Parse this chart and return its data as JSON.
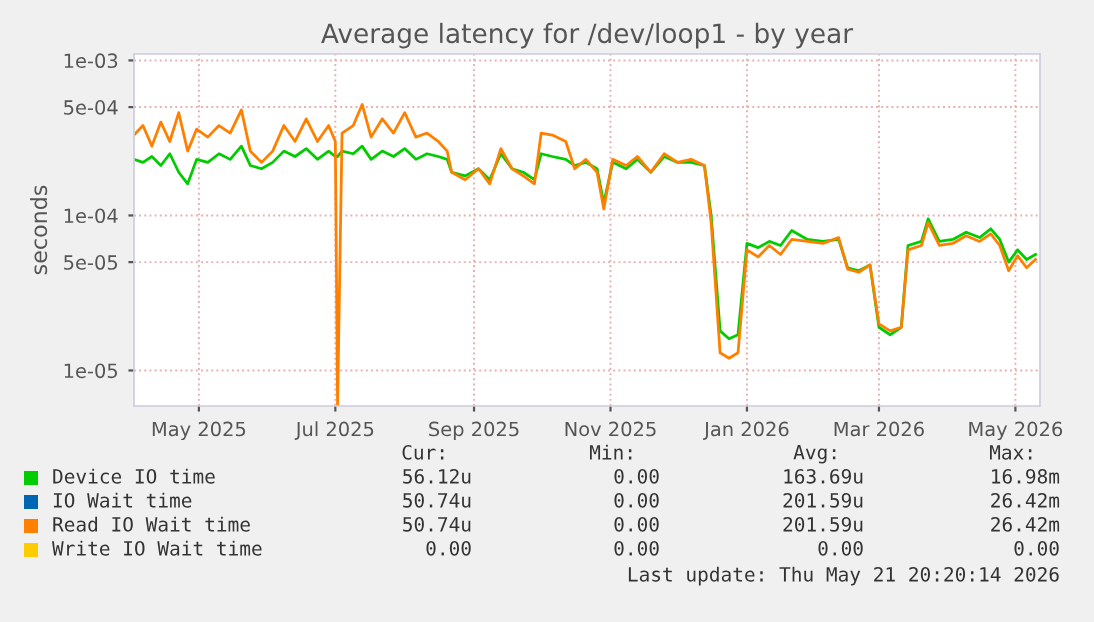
{
  "chart_data": {
    "type": "line",
    "title": "Average latency for /dev/loop1 - by year",
    "ylabel": "seconds",
    "log": "y",
    "grid": true,
    "legend": "bottom",
    "marker": "none",
    "line_style": "solid",
    "ylim": [
      5.9e-06,
      0.0011
    ],
    "yticks": [
      {
        "value": 0.001,
        "label": "1e-03"
      },
      {
        "value": 0.0005,
        "label": "5e-04"
      },
      {
        "value": 0.0001,
        "label": "1e-04"
      },
      {
        "value": 5e-05,
        "label": "5e-05"
      },
      {
        "value": 1e-05,
        "label": "1e-05"
      }
    ],
    "xlim": [
      "2025-04-02",
      "2026-05-12"
    ],
    "xticks": [
      {
        "value": "2025-05-01",
        "label": "May 2025"
      },
      {
        "value": "2025-07-01",
        "label": "Jul 2025"
      },
      {
        "value": "2025-09-01",
        "label": "Sep 2025"
      },
      {
        "value": "2025-11-01",
        "label": "Nov 2025"
      },
      {
        "value": "2026-01-01",
        "label": "Jan 2026"
      },
      {
        "value": "2026-03-01",
        "label": "Mar 2026"
      },
      {
        "value": "2026-05-01",
        "label": "May 2026"
      }
    ],
    "x": [
      "2025-04-02",
      "2025-04-06",
      "2025-04-10",
      "2025-04-14",
      "2025-04-18",
      "2025-04-22",
      "2025-04-26",
      "2025-04-30",
      "2025-05-05",
      "2025-05-10",
      "2025-05-15",
      "2025-05-20",
      "2025-05-24",
      "2025-05-29",
      "2025-06-03",
      "2025-06-08",
      "2025-06-13",
      "2025-06-18",
      "2025-06-23",
      "2025-06-28",
      "2025-07-01",
      "2025-07-02",
      "2025-07-04",
      "2025-07-09",
      "2025-07-13",
      "2025-07-17",
      "2025-07-22",
      "2025-07-27",
      "2025-08-01",
      "2025-08-06",
      "2025-08-11",
      "2025-08-16",
      "2025-08-20",
      "2025-08-22",
      "2025-08-28",
      "2025-09-03",
      "2025-09-08",
      "2025-09-13",
      "2025-09-18",
      "2025-09-23",
      "2025-09-28",
      "2025-10-01",
      "2025-10-06",
      "2025-10-12",
      "2025-10-16",
      "2025-10-21",
      "2025-10-26",
      "2025-10-29",
      "2025-11-02",
      "2025-11-08",
      "2025-11-13",
      "2025-11-19",
      "2025-11-25",
      "2025-12-01",
      "2025-12-07",
      "2025-12-13",
      "2025-12-16",
      "2025-12-20",
      "2025-12-24",
      "2025-12-28",
      "2026-01-01",
      "2026-01-06",
      "2026-01-11",
      "2026-01-16",
      "2026-01-21",
      "2026-01-28",
      "2026-02-04",
      "2026-02-11",
      "2026-02-15",
      "2026-02-20",
      "2026-02-25",
      "2026-03-01",
      "2026-03-06",
      "2026-03-11",
      "2026-03-14",
      "2026-03-20",
      "2026-03-23",
      "2026-03-28",
      "2026-04-03",
      "2026-04-09",
      "2026-04-15",
      "2026-04-20",
      "2026-04-24",
      "2026-04-28",
      "2026-05-02",
      "2026-05-06",
      "2026-05-10"
    ],
    "series": [
      {
        "name": "Device IO time",
        "color": "#00cc00",
        "values": [
          0.00023,
          0.00022,
          0.00024,
          0.00021,
          0.00025,
          0.00019,
          0.00016,
          0.00023,
          0.00022,
          0.00025,
          0.00023,
          0.00028,
          0.00021,
          0.0002,
          0.00022,
          0.00026,
          0.00024,
          0.00027,
          0.00023,
          0.00026,
          0.00024,
          0.00024,
          0.00026,
          0.00025,
          0.00028,
          0.00023,
          0.00026,
          0.00024,
          0.00027,
          0.00023,
          0.00025,
          0.00024,
          0.00023,
          0.00019,
          0.00018,
          0.0002,
          0.00017,
          0.00025,
          0.0002,
          0.00019,
          0.00017,
          0.00025,
          0.00024,
          0.00023,
          0.00021,
          0.00022,
          0.0002,
          0.00012,
          0.00022,
          0.0002,
          0.00023,
          0.00019,
          0.00024,
          0.00022,
          0.00022,
          0.00021,
          0.0001,
          1.8e-05,
          1.6e-05,
          1.7e-05,
          6.6e-05,
          6.2e-05,
          6.8e-05,
          6.4e-05,
          8e-05,
          7e-05,
          6.8e-05,
          7e-05,
          4.6e-05,
          4.4e-05,
          4.8e-05,
          1.9e-05,
          1.7e-05,
          1.9e-05,
          6.4e-05,
          6.8e-05,
          9.5e-05,
          6.8e-05,
          7e-05,
          7.8e-05,
          7.2e-05,
          8.2e-05,
          7e-05,
          5e-05,
          6e-05,
          5.2e-05,
          5.6e-05
        ]
      },
      {
        "name": "IO Wait time",
        "color": "#0066b3",
        "values": [
          null,
          null,
          null,
          null,
          null,
          null,
          null,
          null,
          null,
          null,
          null,
          null,
          null,
          null,
          null,
          null,
          null,
          null,
          null,
          null,
          null,
          null,
          null,
          null,
          null,
          null,
          null,
          null,
          null,
          null,
          null,
          null,
          null,
          null,
          null,
          null,
          null,
          null,
          null,
          null,
          null,
          null,
          null,
          null,
          null,
          null,
          null,
          null,
          null,
          null,
          null,
          null,
          null,
          null,
          null,
          null,
          null,
          null,
          null,
          null,
          null,
          null,
          null,
          null,
          null,
          null,
          null,
          null,
          null,
          null,
          null,
          null,
          null,
          null,
          null,
          null,
          null,
          null,
          null,
          null,
          null,
          null,
          null,
          null,
          null,
          null,
          null
        ]
      },
      {
        "name": "Read IO Wait time",
        "color": "#ff8000",
        "values": [
          0.00033,
          0.00038,
          0.00028,
          0.0004,
          0.0003,
          0.00046,
          0.00026,
          0.00036,
          0.00032,
          0.00038,
          0.00034,
          0.00048,
          0.00026,
          0.00022,
          0.00026,
          0.00038,
          0.0003,
          0.00042,
          0.0003,
          0.00038,
          0.0003,
          6e-06,
          0.00034,
          0.00038,
          0.00052,
          0.00032,
          0.00042,
          0.00034,
          0.00046,
          0.00032,
          0.00034,
          0.0003,
          0.00026,
          0.00019,
          0.00017,
          0.0002,
          0.00016,
          0.00027,
          0.0002,
          0.00018,
          0.00016,
          0.00034,
          0.00033,
          0.0003,
          0.0002,
          0.00023,
          0.00019,
          0.00011,
          0.00023,
          0.00021,
          0.00024,
          0.00019,
          0.00025,
          0.00022,
          0.00023,
          0.00021,
          9e-05,
          1.3e-05,
          1.2e-05,
          1.3e-05,
          6e-05,
          5.4e-05,
          6.4e-05,
          5.6e-05,
          7e-05,
          6.8e-05,
          6.6e-05,
          7.2e-05,
          4.5e-05,
          4.3e-05,
          4.8e-05,
          2e-05,
          1.8e-05,
          1.9e-05,
          6e-05,
          6.4e-05,
          9e-05,
          6.4e-05,
          6.6e-05,
          7.4e-05,
          6.8e-05,
          7.6e-05,
          6.4e-05,
          4.4e-05,
          5.5e-05,
          4.6e-05,
          5.2e-05
        ]
      },
      {
        "name": "Write IO Wait time",
        "color": "#ffcc00",
        "values": [
          null,
          null,
          null,
          null,
          null,
          null,
          null,
          null,
          null,
          null,
          null,
          null,
          null,
          null,
          null,
          null,
          null,
          null,
          null,
          null,
          null,
          null,
          null,
          null,
          null,
          null,
          null,
          null,
          null,
          null,
          null,
          null,
          null,
          null,
          null,
          null,
          null,
          null,
          null,
          null,
          null,
          null,
          null,
          null,
          null,
          null,
          null,
          null,
          null,
          null,
          null,
          null,
          null,
          null,
          null,
          null,
          null,
          null,
          null,
          null,
          null,
          null,
          null,
          null,
          null,
          null,
          null,
          null,
          null,
          null,
          null,
          null,
          null,
          null,
          null,
          null,
          null,
          null,
          null,
          null,
          null,
          null,
          null,
          null,
          null,
          null,
          null
        ]
      }
    ],
    "annotations": [
      "Cur:",
      "Min:",
      "Avg:",
      "Max:",
      "56.12u",
      "0.00",
      "163.69u",
      "16.98m",
      "50.74u",
      "0.00",
      "201.59u",
      "26.42m",
      "50.74u",
      "0.00",
      "201.59u",
      "26.42m",
      "0.00",
      "0.00",
      "0.00",
      "0.00",
      "Last update: Thu May 21 20:20:14 2026"
    ]
  }
}
